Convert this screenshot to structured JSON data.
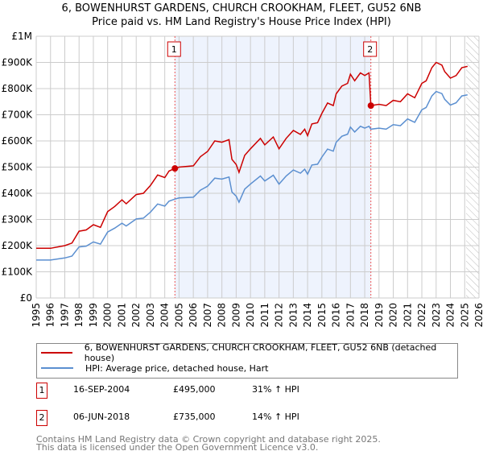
{
  "chart_data": {
    "type": "line",
    "title": "6, BOWENHURST GARDENS, CHURCH CROOKHAM, FLEET, GU52 6NB",
    "subtitle": "Price paid vs. HM Land Registry's House Price Index (HPI)",
    "xlim": [
      1995,
      2026
    ],
    "ylim": [
      0,
      1000000
    ],
    "y_ticks": [
      {
        "v": 0,
        "label": "£0"
      },
      {
        "v": 100000,
        "label": "£100K"
      },
      {
        "v": 200000,
        "label": "£200K"
      },
      {
        "v": 300000,
        "label": "£300K"
      },
      {
        "v": 400000,
        "label": "£400K"
      },
      {
        "v": 500000,
        "label": "£500K"
      },
      {
        "v": 600000,
        "label": "£600K"
      },
      {
        "v": 700000,
        "label": "£700K"
      },
      {
        "v": 800000,
        "label": "£800K"
      },
      {
        "v": 900000,
        "label": "£900K"
      },
      {
        "v": 1000000,
        "label": "£1M"
      }
    ],
    "x_ticks": [
      "1995",
      "1996",
      "1997",
      "1998",
      "1999",
      "2000",
      "2001",
      "2002",
      "2003",
      "2004",
      "2005",
      "2006",
      "2007",
      "2008",
      "2009",
      "2010",
      "2011",
      "2012",
      "2013",
      "2014",
      "2015",
      "2016",
      "2017",
      "2018",
      "2019",
      "2020",
      "2021",
      "2022",
      "2023",
      "2024",
      "2025",
      "2026"
    ],
    "grid": true,
    "shaded_range": [
      2004.71,
      2018.43
    ],
    "hatched_from": 2025.1,
    "x": [
      1995,
      1996,
      1997,
      1997.5,
      1998,
      1998.5,
      1999,
      1999.5,
      2000,
      2000.5,
      2001,
      2001.3,
      2002,
      2002.5,
      2003,
      2003.5,
      2004,
      2004.3,
      2004.71,
      2005,
      2006,
      2006.5,
      2007,
      2007.5,
      2008,
      2008.5,
      2008.7,
      2009,
      2009.2,
      2009.6,
      2010,
      2010.7,
      2011,
      2011.6,
      2012,
      2012.5,
      2013,
      2013.5,
      2013.8,
      2014,
      2014.3,
      2014.7,
      2015,
      2015.4,
      2015.8,
      2016,
      2016.4,
      2016.8,
      2017,
      2017.3,
      2017.7,
      2018,
      2018.3,
      2018.43,
      2019,
      2019.5,
      2020,
      2020.5,
      2021,
      2021.5,
      2022,
      2022.3,
      2022.7,
      2023,
      2023.4,
      2023.6,
      2024,
      2024.4,
      2024.8,
      2025.2
    ],
    "series": [
      {
        "name": "6, BOWENHURST GARDENS, CHURCH CROOKHAM, FLEET, GU52 6NB (detached house)",
        "color": "#cc0000",
        "values": [
          190,
          190,
          200,
          210,
          255,
          260,
          280,
          270,
          330,
          350,
          375,
          360,
          395,
          400,
          430,
          470,
          460,
          485,
          495,
          500,
          505,
          540,
          560,
          600,
          595,
          605,
          530,
          510,
          480,
          545,
          570,
          610,
          585,
          615,
          570,
          610,
          640,
          625,
          645,
          620,
          665,
          670,
          705,
          745,
          735,
          780,
          810,
          820,
          855,
          830,
          860,
          850,
          860,
          735,
          740,
          735,
          755,
          750,
          780,
          765,
          820,
          830,
          880,
          900,
          890,
          865,
          840,
          850,
          880,
          885
        ]
      },
      {
        "name": "HPI: Average price, detached house, Hart",
        "color": "#5b8fd0",
        "values": [
          145,
          145,
          153,
          160,
          195,
          198,
          214,
          206,
          252,
          267,
          286,
          275,
          302,
          305,
          328,
          359,
          351,
          370,
          378,
          382,
          385,
          412,
          427,
          458,
          454,
          462,
          405,
          389,
          366,
          416,
          435,
          466,
          447,
          469,
          435,
          466,
          489,
          477,
          492,
          473,
          508,
          511,
          538,
          569,
          561,
          595,
          618,
          626,
          653,
          634,
          656,
          649,
          656,
          645,
          649,
          645,
          662,
          658,
          684,
          671,
          719,
          728,
          772,
          789,
          781,
          759,
          737,
          746,
          772,
          776
        ]
      }
    ],
    "value_unit": "thousand GBP",
    "sales": [
      {
        "label": "1",
        "x": 2004.71,
        "value": 495
      },
      {
        "label": "2",
        "x": 2018.43,
        "value": 735
      }
    ]
  },
  "table": [
    {
      "num": "1",
      "date": "16-SEP-2004",
      "price": "£495,000",
      "hpi": "31% ↑ HPI"
    },
    {
      "num": "2",
      "date": "06-JUN-2018",
      "price": "£735,000",
      "hpi": "14% ↑ HPI"
    }
  ],
  "footer": {
    "line1": "Contains HM Land Registry data © Crown copyright and database right 2025.",
    "line2": "This data is licensed under the Open Government Licence v3.0."
  }
}
